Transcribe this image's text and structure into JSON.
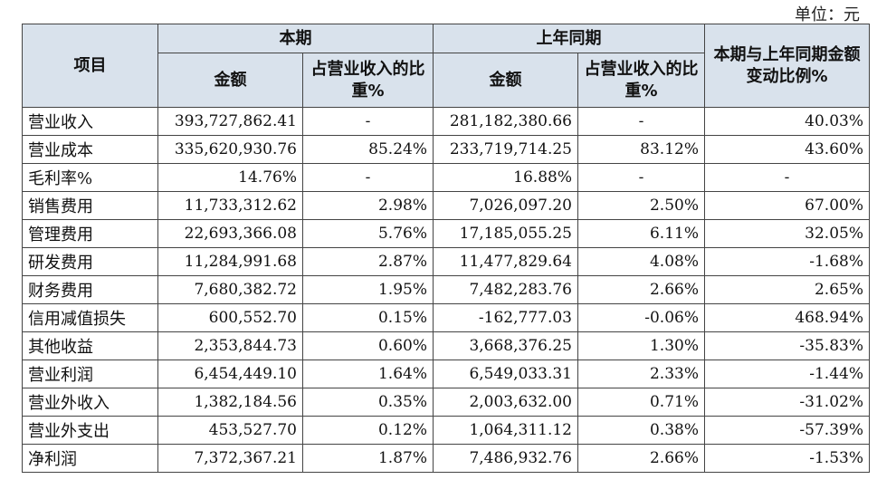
{
  "unit_label": "单位：元",
  "header": {
    "item": "项目",
    "current_period": "本期",
    "prior_period": "上年同期",
    "change": "本期与上年同期金额变动比例%",
    "amount": "金额",
    "share": "占营业收入的比重%"
  },
  "rows": [
    {
      "label": "营业收入",
      "cur_amount": "393,727,862.41",
      "cur_share": "-",
      "prior_amount": "281,182,380.66",
      "prior_share": "-",
      "change": "40.03%"
    },
    {
      "label": "营业成本",
      "cur_amount": "335,620,930.76",
      "cur_share": "85.24%",
      "prior_amount": "233,719,714.25",
      "prior_share": "83.12%",
      "change": "43.60%"
    },
    {
      "label": "毛利率%",
      "cur_amount": "14.76%",
      "cur_share": "-",
      "prior_amount": "16.88%",
      "prior_share": "-",
      "change": "-"
    },
    {
      "label": "销售费用",
      "cur_amount": "11,733,312.62",
      "cur_share": "2.98%",
      "prior_amount": "7,026,097.20",
      "prior_share": "2.50%",
      "change": "67.00%"
    },
    {
      "label": "管理费用",
      "cur_amount": "22,693,366.08",
      "cur_share": "5.76%",
      "prior_amount": "17,185,055.25",
      "prior_share": "6.11%",
      "change": "32.05%"
    },
    {
      "label": "研发费用",
      "cur_amount": "11,284,991.68",
      "cur_share": "2.87%",
      "prior_amount": "11,477,829.64",
      "prior_share": "4.08%",
      "change": "-1.68%"
    },
    {
      "label": "财务费用",
      "cur_amount": "7,680,382.72",
      "cur_share": "1.95%",
      "prior_amount": "7,482,283.76",
      "prior_share": "2.66%",
      "change": "2.65%"
    },
    {
      "label": "信用减值损失",
      "cur_amount": "600,552.70",
      "cur_share": "0.15%",
      "prior_amount": "-162,777.03",
      "prior_share": "-0.06%",
      "change": "468.94%"
    },
    {
      "label": "其他收益",
      "cur_amount": "2,353,844.73",
      "cur_share": "0.60%",
      "prior_amount": "3,668,376.25",
      "prior_share": "1.30%",
      "change": "-35.83%"
    },
    {
      "label": "营业利润",
      "cur_amount": "6,454,449.10",
      "cur_share": "1.64%",
      "prior_amount": "6,549,033.31",
      "prior_share": "2.33%",
      "change": "-1.44%"
    },
    {
      "label": "营业外收入",
      "cur_amount": "1,382,184.56",
      "cur_share": "0.35%",
      "prior_amount": "2,003,632.00",
      "prior_share": "0.71%",
      "change": "-31.02%"
    },
    {
      "label": "营业外支出",
      "cur_amount": "453,527.70",
      "cur_share": "0.12%",
      "prior_amount": "1,064,311.12",
      "prior_share": "0.38%",
      "change": "-57.39%"
    },
    {
      "label": "净利润",
      "cur_amount": "7,372,367.21",
      "cur_share": "1.87%",
      "prior_amount": "7,486,932.76",
      "prior_share": "2.66%",
      "change": "-1.53%"
    }
  ]
}
